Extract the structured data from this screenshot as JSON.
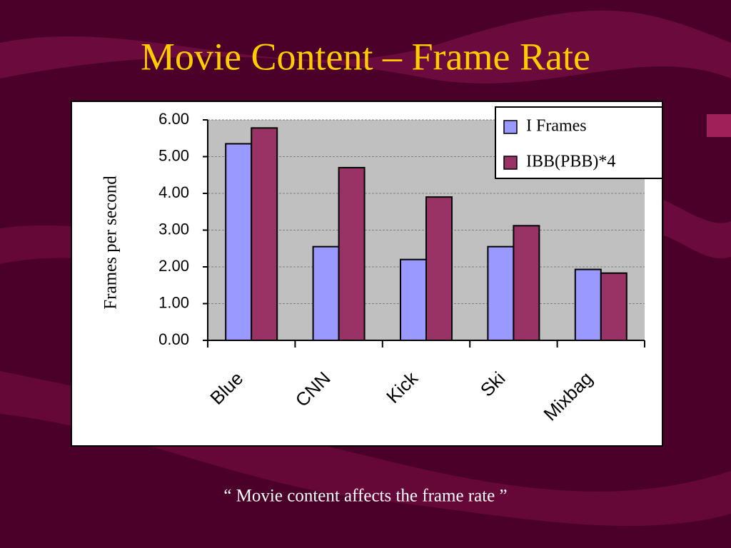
{
  "chart_data": {
    "type": "bar",
    "title": "Movie Content – Frame Rate",
    "y_label": "Frames per second",
    "caption": "“ Movie content affects the frame rate ”",
    "categories": [
      "Blue",
      "CNN",
      "Kick",
      "Ski",
      "Mixbag"
    ],
    "series": [
      {
        "name": "I Frames",
        "color": "#9999ff",
        "values": [
          5.35,
          2.55,
          2.2,
          2.55,
          1.93
        ]
      },
      {
        "name": "IBB(PBB)*4",
        "color": "#993366",
        "values": [
          5.78,
          4.7,
          3.9,
          3.12,
          1.83
        ]
      }
    ],
    "ylim": [
      0,
      6
    ],
    "yticks": [
      {
        "value": 0,
        "label": "0.00"
      },
      {
        "value": 1,
        "label": "1.00"
      },
      {
        "value": 2,
        "label": "2.00"
      },
      {
        "value": 3,
        "label": "3.00"
      },
      {
        "value": 4,
        "label": "4.00"
      },
      {
        "value": 5,
        "label": "5.00"
      },
      {
        "value": 6,
        "label": "6.00"
      }
    ],
    "grid": true,
    "legend": "top-right"
  }
}
